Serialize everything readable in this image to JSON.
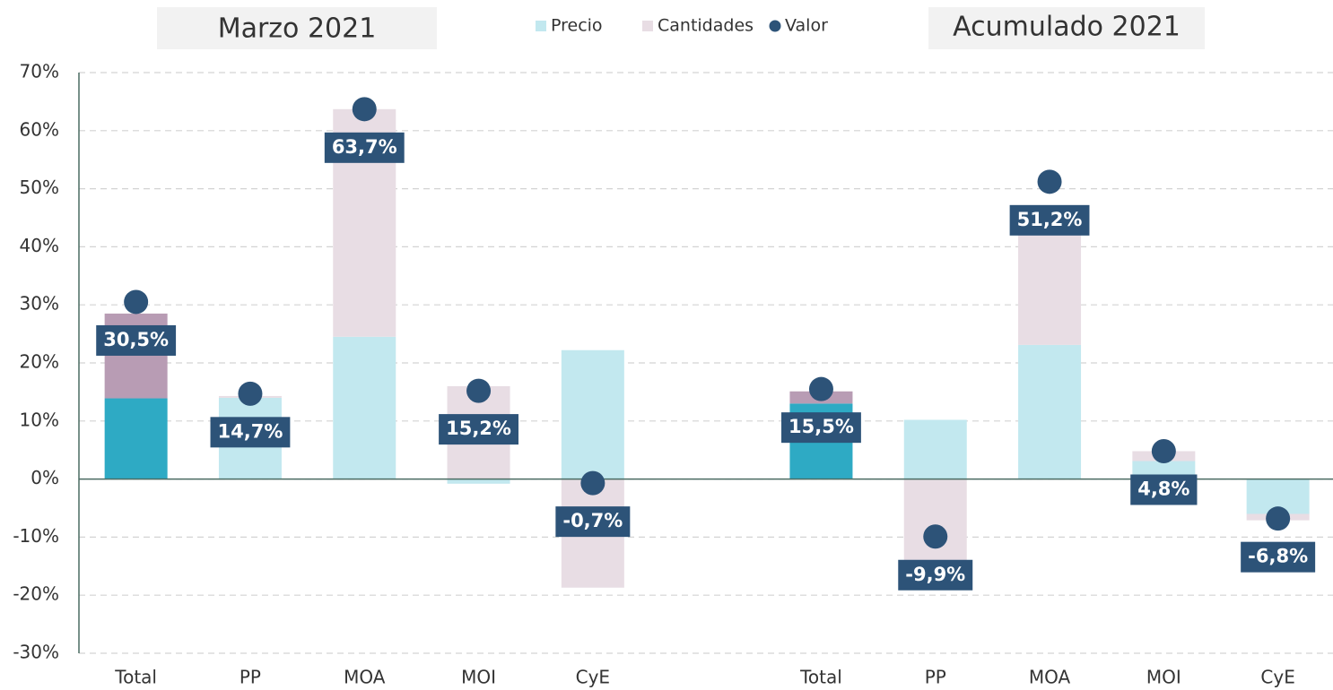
{
  "chart_data": {
    "type": "bar",
    "stacked": true,
    "group_titles": [
      "Marzo 2021",
      "Acumulado 2021"
    ],
    "categories": [
      "Total",
      "PP",
      "MOA",
      "MOI",
      "CyE",
      null,
      "Total",
      "PP",
      "MOA",
      "MOI",
      "CyE"
    ],
    "series": [
      {
        "name": "Precio",
        "color": "#c2e8ef",
        "colors": [
          "#2eaac4",
          "#c2e8ef",
          "#c2e8ef",
          "#c2e8ef",
          "#c2e8ef",
          null,
          "#2eaac4",
          "#c2e8ef",
          "#c2e8ef",
          "#c2e8ef",
          "#c2e8ef"
        ],
        "values": [
          13.9,
          14.0,
          24.5,
          -0.8,
          22.2,
          null,
          13.0,
          10.2,
          23.1,
          3.1,
          -6.0
        ]
      },
      {
        "name": "Cantidades",
        "color": "#e8dde4",
        "colors": [
          "#b89cb4",
          "#e8dde4",
          "#e8dde4",
          "#e8dde4",
          "#e8dde4",
          null,
          "#b89cb4",
          "#e8dde4",
          "#e8dde4",
          "#e8dde4",
          "#e8dde4"
        ],
        "values": [
          14.6,
          0.3,
          39.2,
          16.0,
          -18.7,
          null,
          2.1,
          -17.5,
          20.5,
          1.7,
          -1.1
        ]
      },
      {
        "name": "Valor",
        "type": "scatter",
        "color": "#2d5378",
        "values": [
          30.5,
          14.7,
          63.7,
          15.2,
          -0.7,
          null,
          15.5,
          -9.9,
          51.2,
          4.8,
          -6.8
        ],
        "value_labels": [
          "30,5%",
          "14,7%",
          "63,7%",
          "15,2%",
          "-0,7%",
          null,
          "15,5%",
          "-9,9%",
          "51,2%",
          "4,8%",
          "-6,8%"
        ]
      }
    ],
    "ylim": [
      -30,
      70
    ],
    "yticks": [
      {
        "value": -30,
        "label": "-30%"
      },
      {
        "value": -20,
        "label": "-20%"
      },
      {
        "value": -10,
        "label": "-10%"
      },
      {
        "value": 0,
        "label": "0%"
      },
      {
        "value": 10,
        "label": "10%"
      },
      {
        "value": 20,
        "label": "20%"
      },
      {
        "value": 30,
        "label": "30%"
      },
      {
        "value": 40,
        "label": "40%"
      },
      {
        "value": 50,
        "label": "50%"
      },
      {
        "value": 60,
        "label": "60%"
      },
      {
        "value": 70,
        "label": "70%"
      }
    ],
    "grid": true,
    "legend": "top"
  }
}
